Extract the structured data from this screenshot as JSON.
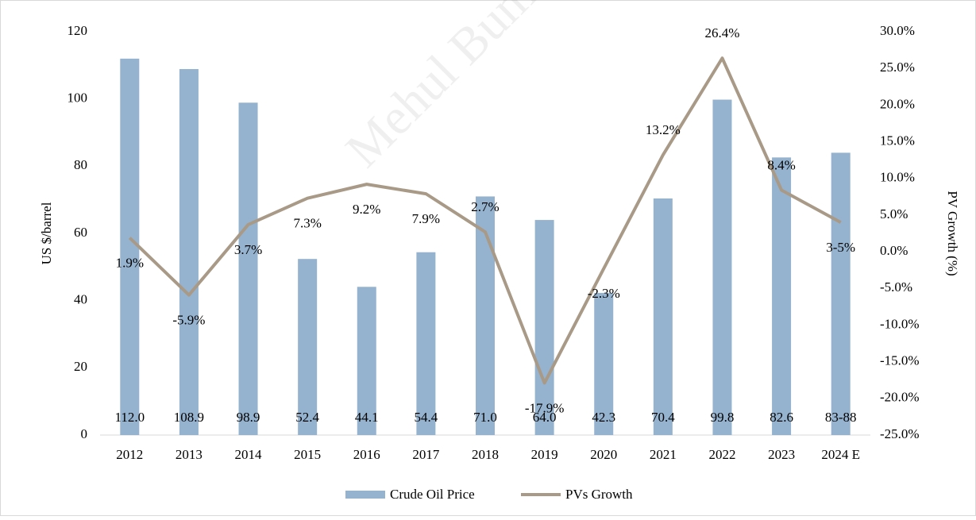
{
  "chart_data": {
    "type": "bar",
    "watermark": "Mehul Bum",
    "y_label": "US $/barrel",
    "y2_label": "PV Growth (%)",
    "categories": [
      "2012",
      "2013",
      "2014",
      "2015",
      "2016",
      "2017",
      "2018",
      "2019",
      "2020",
      "2021",
      "2022",
      "2023",
      "2024 E"
    ],
    "series": [
      {
        "name": "Crude Oil Price",
        "type": "bar",
        "color": "#95b3cf",
        "values": [
          112.0,
          108.9,
          98.9,
          52.4,
          44.1,
          54.4,
          71.0,
          64.0,
          42.3,
          70.4,
          99.8,
          82.6,
          84
        ],
        "value_labels": [
          "112.0",
          "108.9",
          "98.9",
          "52.4",
          "44.1",
          "54.4",
          "71.0",
          "64.0",
          "42.3",
          "70.4",
          "99.8",
          "82.6",
          "83-88"
        ]
      },
      {
        "name": "PVs Growth",
        "type": "line",
        "axis": "y2",
        "color": "#a89a86",
        "values": [
          1.9,
          -5.9,
          3.7,
          7.3,
          9.2,
          7.9,
          2.7,
          -17.9,
          -2.3,
          13.2,
          26.4,
          8.4,
          4
        ],
        "value_labels": [
          "1.9%",
          "-5.9%",
          "3.7%",
          "7.3%",
          "9.2%",
          "7.9%",
          "2.7%",
          "-17.9%",
          "-2.3%",
          "13.2%",
          "26.4%",
          "8.4%",
          "3-5%"
        ]
      }
    ],
    "ylim": [
      0,
      120
    ],
    "yticks": [
      0,
      20,
      40,
      60,
      80,
      100,
      120
    ],
    "y2lim": [
      -25,
      30
    ],
    "y2ticks": [
      {
        "value": -25,
        "label": "-25.0%"
      },
      {
        "value": -20,
        "label": "-20.0%"
      },
      {
        "value": -15,
        "label": "-15.0%"
      },
      {
        "value": -10,
        "label": "-10.0%"
      },
      {
        "value": -5,
        "label": "-5.0%"
      },
      {
        "value": 0,
        "label": "0.0%"
      },
      {
        "value": 5,
        "label": "5.0%"
      },
      {
        "value": 10,
        "label": "10.0%"
      },
      {
        "value": 15,
        "label": "15.0%"
      },
      {
        "value": 20,
        "label": "20.0%"
      },
      {
        "value": 25,
        "label": "25.0%"
      },
      {
        "value": 30,
        "label": "30.0%"
      }
    ],
    "grid": false,
    "legend": "bottom"
  }
}
